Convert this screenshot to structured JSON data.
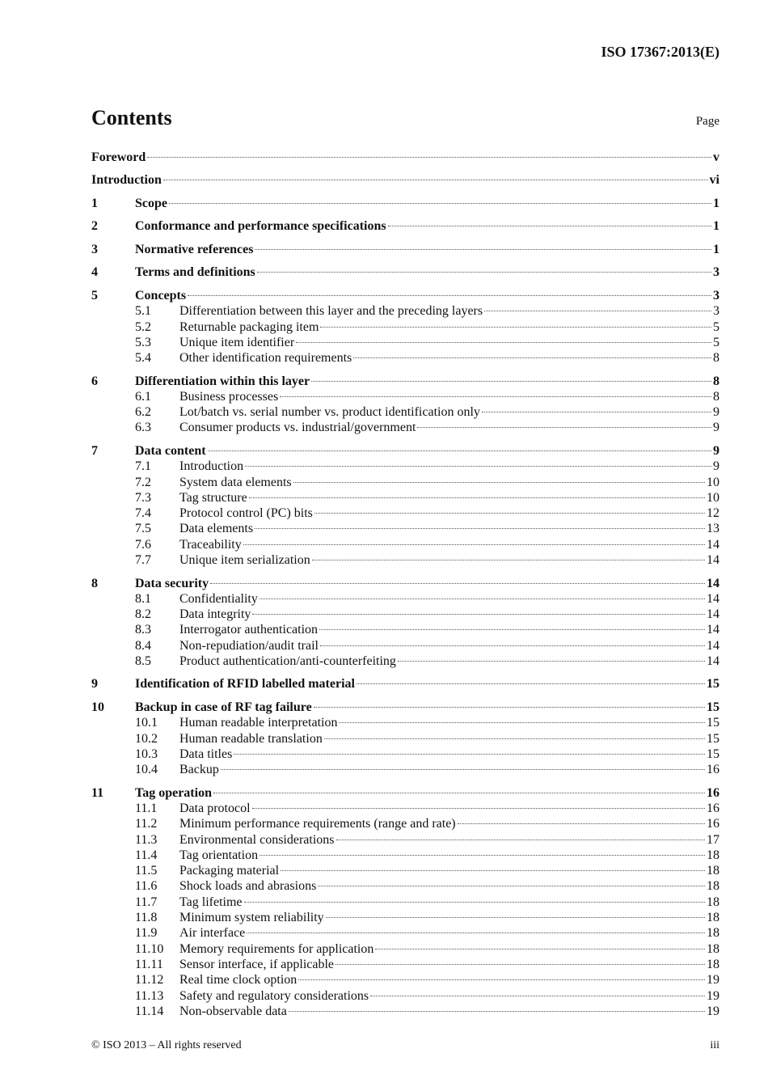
{
  "header": {
    "doc_id": "ISO 17367:2013(E)"
  },
  "contents": {
    "title": "Contents",
    "page_label": "Page"
  },
  "toc": [
    {
      "num": "",
      "title": "Foreword",
      "page": "v",
      "level": 1
    },
    {
      "num": "",
      "title": "Introduction",
      "page": "vi",
      "level": 1
    },
    {
      "num": "1",
      "title": "Scope",
      "page": "1",
      "level": 1
    },
    {
      "num": "2",
      "title": "Conformance and performance specifications",
      "page": "1",
      "level": 1
    },
    {
      "num": "3",
      "title": "Normative references",
      "page": "1",
      "level": 1
    },
    {
      "num": "4",
      "title": "Terms and definitions",
      "page": "3",
      "level": 1
    },
    {
      "num": "5",
      "title": "Concepts",
      "page": "3",
      "level": 1
    },
    {
      "num": "5.1",
      "title": "Differentiation between this layer and the preceding layers",
      "page": "3",
      "level": 2
    },
    {
      "num": "5.2",
      "title": "Returnable packaging item",
      "page": "5",
      "level": 2
    },
    {
      "num": "5.3",
      "title": "Unique item identifier",
      "page": "5",
      "level": 2
    },
    {
      "num": "5.4",
      "title": "Other identification requirements",
      "page": "8",
      "level": 2
    },
    {
      "num": "6",
      "title": "Differentiation within this layer",
      "page": "8",
      "level": 1
    },
    {
      "num": "6.1",
      "title": "Business processes",
      "page": "8",
      "level": 2
    },
    {
      "num": "6.2",
      "title": "Lot/batch vs. serial number vs. product identification only",
      "page": "9",
      "level": 2
    },
    {
      "num": "6.3",
      "title": "Consumer products vs. industrial/government",
      "page": "9",
      "level": 2
    },
    {
      "num": "7",
      "title": "Data content",
      "page": "9",
      "level": 1
    },
    {
      "num": "7.1",
      "title": "Introduction",
      "page": "9",
      "level": 2
    },
    {
      "num": "7.2",
      "title": "System data elements",
      "page": "10",
      "level": 2
    },
    {
      "num": "7.3",
      "title": "Tag structure",
      "page": "10",
      "level": 2
    },
    {
      "num": "7.4",
      "title": "Protocol control (PC) bits",
      "page": "12",
      "level": 2
    },
    {
      "num": "7.5",
      "title": "Data elements",
      "page": "13",
      "level": 2
    },
    {
      "num": "7.6",
      "title": "Traceability",
      "page": "14",
      "level": 2
    },
    {
      "num": "7.7",
      "title": "Unique item serialization",
      "page": "14",
      "level": 2
    },
    {
      "num": "8",
      "title": "Data security",
      "page": "14",
      "level": 1
    },
    {
      "num": "8.1",
      "title": "Confidentiality",
      "page": "14",
      "level": 2
    },
    {
      "num": "8.2",
      "title": "Data integrity",
      "page": "14",
      "level": 2
    },
    {
      "num": "8.3",
      "title": "Interrogator authentication",
      "page": "14",
      "level": 2
    },
    {
      "num": "8.4",
      "title": "Non-repudiation/audit trail",
      "page": "14",
      "level": 2
    },
    {
      "num": "8.5",
      "title": "Product authentication/anti-counterfeiting",
      "page": "14",
      "level": 2
    },
    {
      "num": "9",
      "title": "Identification of RFID labelled material",
      "page": "15",
      "level": 1
    },
    {
      "num": "10",
      "title": "Backup in case of RF tag failure",
      "page": "15",
      "level": 1
    },
    {
      "num": "10.1",
      "title": "Human readable interpretation",
      "page": "15",
      "level": 2
    },
    {
      "num": "10.2",
      "title": "Human readable translation",
      "page": "15",
      "level": 2
    },
    {
      "num": "10.3",
      "title": "Data titles",
      "page": "15",
      "level": 2
    },
    {
      "num": "10.4",
      "title": "Backup",
      "page": "16",
      "level": 2
    },
    {
      "num": "11",
      "title": "Tag operation",
      "page": "16",
      "level": 1
    },
    {
      "num": "11.1",
      "title": "Data protocol",
      "page": "16",
      "level": 2
    },
    {
      "num": "11.2",
      "title": "Minimum performance requirements (range and rate)",
      "page": "16",
      "level": 2
    },
    {
      "num": "11.3",
      "title": "Environmental considerations",
      "page": "17",
      "level": 2
    },
    {
      "num": "11.4",
      "title": "Tag orientation",
      "page": "18",
      "level": 2
    },
    {
      "num": "11.5",
      "title": "Packaging material",
      "page": "18",
      "level": 2
    },
    {
      "num": "11.6",
      "title": "Shock loads and abrasions",
      "page": "18",
      "level": 2
    },
    {
      "num": "11.7",
      "title": "Tag lifetime",
      "page": "18",
      "level": 2
    },
    {
      "num": "11.8",
      "title": "Minimum system reliability",
      "page": "18",
      "level": 2
    },
    {
      "num": "11.9",
      "title": "Air interface",
      "page": "18",
      "level": 2
    },
    {
      "num": "11.10",
      "title": "Memory requirements for application",
      "page": "18",
      "level": 2
    },
    {
      "num": "11.11",
      "title": "Sensor interface, if applicable",
      "page": "18",
      "level": 2
    },
    {
      "num": "11.12",
      "title": "Real time clock option",
      "page": "19",
      "level": 2
    },
    {
      "num": "11.13",
      "title": "Safety and regulatory considerations",
      "page": "19",
      "level": 2
    },
    {
      "num": "11.14",
      "title": "Non-observable data",
      "page": "19",
      "level": 2
    }
  ],
  "footer": {
    "copyright": "© ISO 2013 – All rights reserved",
    "page_number": "iii"
  }
}
